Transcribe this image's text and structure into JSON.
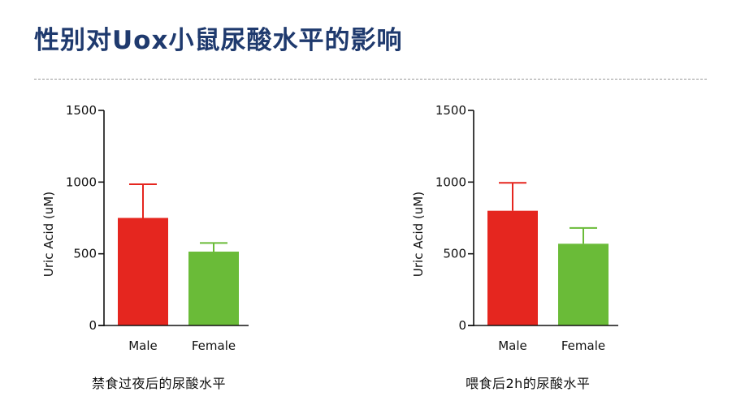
{
  "page": {
    "title": "性别对Uox小鼠尿酸水平的影响",
    "colors": {
      "title": "#1f3a6e",
      "male": "#e5261f",
      "female": "#6abb38",
      "divider": "#9a9a9a"
    }
  },
  "chart_data": [
    {
      "type": "bar",
      "caption": "禁食过夜后的尿酸水平",
      "ylabel": "Uric Acid (uM)",
      "xlabel": "",
      "ylim": [
        0,
        1500
      ],
      "yticks": [
        0,
        500,
        1000,
        1500
      ],
      "categories": [
        "Male",
        "Female"
      ],
      "values": [
        750,
        515
      ],
      "error_upper": [
        985,
        575
      ],
      "colors": [
        "#e5261f",
        "#6abb38"
      ],
      "grid": false
    },
    {
      "type": "bar",
      "caption": "喂食后2h的尿酸水平",
      "ylabel": "Uric Acid (uM)",
      "xlabel": "",
      "ylim": [
        0,
        1500
      ],
      "yticks": [
        0,
        500,
        1000,
        1500
      ],
      "categories": [
        "Male",
        "Female"
      ],
      "values": [
        800,
        570
      ],
      "error_upper": [
        995,
        680
      ],
      "colors": [
        "#e5261f",
        "#6abb38"
      ],
      "grid": false
    }
  ]
}
